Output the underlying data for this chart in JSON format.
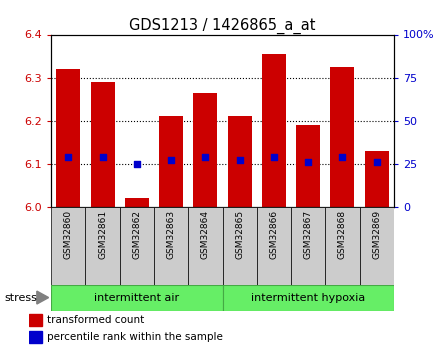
{
  "title": "GDS1213 / 1426865_a_at",
  "samples": [
    "GSM32860",
    "GSM32861",
    "GSM32862",
    "GSM32863",
    "GSM32864",
    "GSM32865",
    "GSM32866",
    "GSM32867",
    "GSM32868",
    "GSM32869"
  ],
  "bar_values": [
    6.32,
    6.29,
    6.02,
    6.21,
    6.265,
    6.21,
    6.355,
    6.19,
    6.325,
    6.13
  ],
  "percentile_values": [
    6.115,
    6.115,
    6.1,
    6.11,
    6.115,
    6.11,
    6.115,
    6.105,
    6.115,
    6.105
  ],
  "bar_bottom": 6.0,
  "ylim_left": [
    6.0,
    6.4
  ],
  "ylim_right": [
    0,
    100
  ],
  "yticks_left": [
    6.0,
    6.1,
    6.2,
    6.3,
    6.4
  ],
  "yticks_right": [
    0,
    25,
    50,
    75,
    100
  ],
  "ytick_labels_right": [
    "0",
    "25",
    "50",
    "75",
    "100%"
  ],
  "bar_color": "#cc0000",
  "percentile_color": "#0000cc",
  "group1_label": "intermittent air",
  "group2_label": "intermittent hypoxia",
  "group_bg_color": "#66ee66",
  "stress_label": "stress",
  "legend1": "transformed count",
  "legend2": "percentile rank within the sample",
  "tick_label_color_left": "#cc0000",
  "tick_label_color_right": "#0000cc",
  "bar_width": 0.7,
  "sample_box_color": "#cccccc",
  "grid_dotted_color": "#000000"
}
